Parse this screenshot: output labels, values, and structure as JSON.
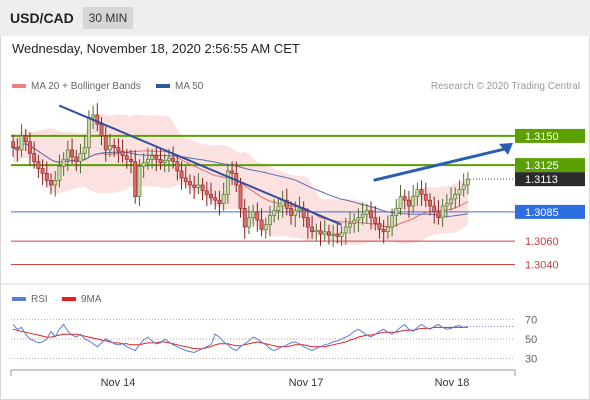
{
  "header": {
    "symbol": "USD/CAD",
    "timeframe": "30 MIN"
  },
  "datetime": "Wednesday, November 18, 2020 2:56:55 AM CET",
  "legend": {
    "bollinger": {
      "label": "MA 20 + Bollinger Bands",
      "color": "#f08080"
    },
    "ma50": {
      "label": "MA 50",
      "color": "#2e5b9e"
    },
    "rsi": {
      "label": "RSI",
      "color": "#5b7fd6"
    },
    "rsi_ma": {
      "label": "9MA",
      "color": "#e02020"
    }
  },
  "credit": "Research © 2020 Trading Central",
  "chart_data": [
    {
      "type": "candlestick",
      "ylim": [
        1.3025,
        1.3185
      ],
      "x_ticks": [
        "Nov 14",
        "Nov 17",
        "Nov 18"
      ],
      "levels": [
        {
          "value": 1.315,
          "label": "1.3150",
          "kind": "resistance",
          "color": "#5aa000"
        },
        {
          "value": 1.3125,
          "label": "1.3125",
          "kind": "resistance",
          "color": "#5aa000"
        },
        {
          "value": 1.3113,
          "label": "1.3113",
          "kind": "last",
          "color": "#333333"
        },
        {
          "value": 1.3085,
          "label": "1.3085",
          "kind": "pivot",
          "color": "#3a6fd8"
        },
        {
          "value": 1.306,
          "label": "1.3060",
          "kind": "support",
          "color": "#d04040"
        },
        {
          "value": 1.304,
          "label": "1.3040",
          "kind": "support",
          "color": "#d04040"
        }
      ],
      "trendline": [
        [
          1.3176,
          0.105
        ],
        [
          1.3074,
          0.72
        ]
      ],
      "forecast_arrow": [
        [
          1.3112,
          0.79
        ],
        [
          1.3144,
          0.875
        ]
      ],
      "close": [
        1.314,
        1.3138,
        1.315,
        1.3145,
        1.3135,
        1.3128,
        1.3122,
        1.3118,
        1.3112,
        1.3108,
        1.3112,
        1.3124,
        1.313,
        1.3138,
        1.3132,
        1.3128,
        1.3135,
        1.314,
        1.3166,
        1.3168,
        1.316,
        1.315,
        1.3138,
        1.3142,
        1.314,
        1.3137,
        1.3133,
        1.313,
        1.3128,
        1.3098,
        1.3124,
        1.3127,
        1.313,
        1.3133,
        1.313,
        1.3127,
        1.3129,
        1.3131,
        1.3128,
        1.312,
        1.3114,
        1.3111,
        1.3108,
        1.3106,
        1.3108,
        1.3103,
        1.31,
        1.3097,
        1.3095,
        1.3092,
        1.31,
        1.312,
        1.3118,
        1.3108,
        1.3088,
        1.3072,
        1.308,
        1.3085,
        1.3078,
        1.307,
        1.3074,
        1.3082,
        1.3086,
        1.309,
        1.3095,
        1.3088,
        1.3082,
        1.3086,
        1.3088,
        1.308,
        1.3072,
        1.3068,
        1.3069,
        1.3066,
        1.3068,
        1.3065,
        1.3066,
        1.3064,
        1.3067,
        1.3072,
        1.3075,
        1.3078,
        1.308,
        1.3083,
        1.3086,
        1.308,
        1.3075,
        1.307,
        1.3068,
        1.3072,
        1.3082,
        1.3088,
        1.3098,
        1.3095,
        1.309,
        1.3098,
        1.3104,
        1.31,
        1.3095,
        1.309,
        1.3085,
        1.308,
        1.309,
        1.3092,
        1.3096,
        1.31,
        1.3104,
        1.3108,
        1.3113
      ]
    },
    {
      "type": "line",
      "name": "RSI",
      "ylim": [
        20,
        80
      ],
      "y_ticks": [
        70,
        50,
        30
      ],
      "series": [
        {
          "name": "RSI",
          "values": [
            65,
            60,
            62,
            55,
            50,
            48,
            46,
            47,
            50,
            58,
            52,
            60,
            65,
            58,
            54,
            52,
            55,
            50,
            48,
            45,
            42,
            46,
            50,
            48,
            45,
            44,
            45,
            42,
            40,
            38,
            44,
            49,
            52,
            48,
            45,
            46,
            50,
            47,
            44,
            42,
            40,
            38,
            37,
            36,
            38,
            40,
            42,
            44,
            55,
            52,
            47,
            44,
            40,
            38,
            42,
            45,
            48,
            52,
            50,
            47,
            44,
            40,
            38,
            40,
            42,
            44,
            46,
            47,
            45,
            42,
            40,
            38,
            40,
            42,
            44,
            45,
            47,
            48,
            50,
            52,
            54,
            58,
            60,
            57,
            54,
            52,
            55,
            58,
            60,
            57,
            55,
            58,
            62,
            65,
            60,
            58,
            62,
            65,
            62,
            60,
            63,
            65,
            62,
            60,
            61,
            63,
            64,
            62,
            63
          ]
        },
        {
          "name": "9MA",
          "values": [
            60,
            59,
            58,
            57,
            56,
            55,
            54,
            53,
            52,
            52,
            53,
            54,
            55,
            55,
            55,
            55,
            54,
            53,
            52,
            51,
            50,
            49,
            48,
            47,
            46,
            46,
            45,
            45,
            44,
            44,
            44,
            45,
            46,
            46,
            46,
            47,
            47,
            46,
            45,
            44,
            43,
            42,
            41,
            40,
            40,
            40,
            41,
            42,
            44,
            45,
            45,
            45,
            44,
            43,
            43,
            44,
            45,
            46,
            47,
            46,
            45,
            44,
            43,
            42,
            42,
            42,
            43,
            44,
            44,
            44,
            43,
            42,
            42,
            42,
            42,
            43,
            44,
            45,
            46,
            47,
            49,
            50,
            52,
            53,
            54,
            54,
            55,
            56,
            57,
            57,
            57,
            57,
            58,
            59,
            59,
            59,
            60,
            61,
            61,
            61,
            62,
            62,
            62,
            62,
            62,
            62,
            62,
            62,
            62
          ]
        }
      ]
    }
  ]
}
